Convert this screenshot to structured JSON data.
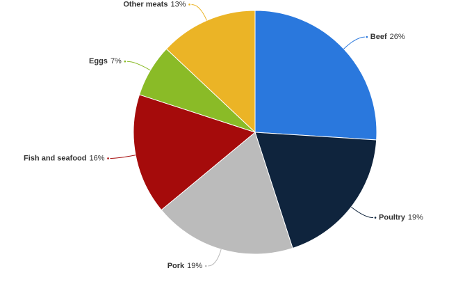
{
  "chart_data": {
    "type": "pie",
    "categories": [
      "Beef",
      "Poultry",
      "Pork",
      "Fish and seafood",
      "Eggs",
      "Other meats"
    ],
    "values": [
      26,
      19,
      19,
      16,
      7,
      13
    ],
    "value_labels": [
      "26%",
      "19%",
      "19%",
      "16%",
      "7%",
      "13%"
    ],
    "colors": [
      "#2a78dd",
      "#0f243d",
      "#bbbbbb",
      "#a50b0b",
      "#8abb27",
      "#ebb426"
    ]
  }
}
